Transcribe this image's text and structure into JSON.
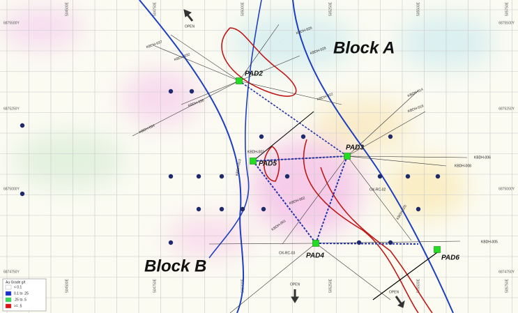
{
  "map": {
    "grid_labels": {
      "top": [
        "504500E",
        "504750E",
        "505000E",
        "505250E",
        "505500E",
        "505750E"
      ],
      "left": [
        "6875500Y",
        "6875250Y",
        "6875000Y",
        "6874750Y"
      ],
      "right": [
        "6875500Y",
        "6875250Y",
        "6875000Y",
        "6874750Y"
      ]
    },
    "blocks": [
      "Block A",
      "Block B"
    ],
    "pads": [
      "PAD2",
      "PAD3",
      "PAD5",
      "PAD4",
      "PAD6"
    ],
    "open_labels": [
      "OPEN",
      "OPEN",
      "OPEN"
    ],
    "drill_holes": [
      "KBDH-037",
      "KBDH-032",
      "KBDH-026",
      "KBDH-028",
      "KBDH-036",
      "KBDH-034",
      "KBDH-014",
      "KBDH-016",
      "KBDH-006",
      "KBDH-008",
      "KBDH-003",
      "KBDH-005",
      "KBDH-001",
      "KBDH-002",
      "KBDH-013",
      "KBDH-022",
      "KBDH-025",
      "OX-RC-02",
      "OX-RC-03"
    ],
    "legend": {
      "title": "Au Grade g/t",
      "items": [
        {
          "label": "< 0.1",
          "color": "#ffffff"
        },
        {
          "label": "0.1 to .25",
          "color": "#1a2fd0"
        },
        {
          "label": ".25 to .5",
          "color": "#33dd55"
        },
        {
          "label": ">= .5",
          "color": "#e01010"
        }
      ]
    }
  }
}
